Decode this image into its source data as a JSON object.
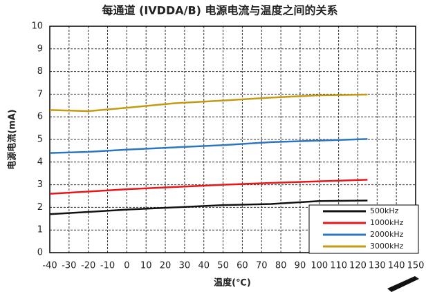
{
  "chart_data": {
    "type": "line",
    "title": "每通道 (IVDDA/B) 电源电流与温度之间的关系",
    "x_label": "温度(℃)",
    "y_label": "电源电流(mA)",
    "x": [
      -40,
      -20,
      0,
      25,
      50,
      75,
      100,
      125
    ],
    "series": [
      {
        "name": "500kHz",
        "color": "#111111",
        "values": [
          1.7,
          1.8,
          1.9,
          2.0,
          2.1,
          2.15,
          2.28,
          2.3
        ]
      },
      {
        "name": "1000kHz",
        "color": "#e8161a",
        "values": [
          2.6,
          2.7,
          2.8,
          2.9,
          3.0,
          3.08,
          3.15,
          3.22
        ]
      },
      {
        "name": "2000kHz",
        "color": "#2e75c0",
        "values": [
          4.4,
          4.45,
          4.55,
          4.65,
          4.75,
          4.88,
          4.95,
          5.02
        ]
      },
      {
        "name": "3000kHz",
        "color": "#c49a12",
        "values": [
          6.3,
          6.25,
          6.4,
          6.6,
          6.72,
          6.85,
          6.95,
          6.98
        ]
      }
    ],
    "xlim": [
      -40,
      150
    ],
    "xticks": [
      -40,
      -30,
      -20,
      -10,
      0,
      10,
      20,
      30,
      40,
      50,
      60,
      70,
      80,
      90,
      100,
      110,
      120,
      130,
      140,
      150
    ],
    "ylim": [
      0,
      10
    ],
    "yticks": [
      0,
      1,
      2,
      3,
      4,
      5,
      6,
      7,
      8,
      9,
      10
    ],
    "grid": true,
    "legend": "lower right"
  }
}
